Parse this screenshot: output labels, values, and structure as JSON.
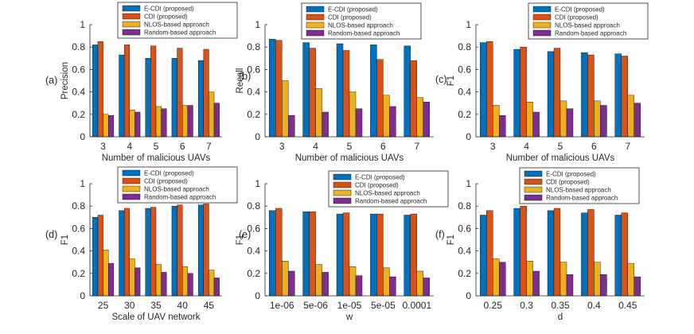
{
  "legend": {
    "entries": [
      "E-CDI (proposed)",
      "CDI (proposed)",
      "NLOS-based approach",
      "Random-based approach"
    ],
    "colors": [
      "#0072BD",
      "#D95319",
      "#EDB120",
      "#7E2F8E"
    ]
  },
  "chart_data": [
    {
      "type": "bar",
      "panel_label": "(a)",
      "categories": [
        "3",
        "4",
        "5",
        "6",
        "7"
      ],
      "xlabel": "Number of malicious UAVs",
      "ylabel": "Precision",
      "ylim": [
        0,
        1
      ],
      "yticks": [
        "0",
        "0.2",
        "0.4",
        "0.6",
        "0.8",
        "1"
      ],
      "series": [
        {
          "name": "E-CDI (proposed)",
          "values": [
            0.82,
            0.73,
            0.7,
            0.7,
            0.68
          ]
        },
        {
          "name": "CDI (proposed)",
          "values": [
            0.85,
            0.82,
            0.81,
            0.79,
            0.78
          ]
        },
        {
          "name": "NLOS-based approach",
          "values": [
            0.2,
            0.24,
            0.27,
            0.28,
            0.4
          ]
        },
        {
          "name": "Random-based approach",
          "values": [
            0.19,
            0.22,
            0.25,
            0.28,
            0.3
          ]
        }
      ]
    },
    {
      "type": "bar",
      "panel_label": "(b)",
      "categories": [
        "3",
        "4",
        "5",
        "6",
        "7"
      ],
      "xlabel": "Number of malicious UAVs",
      "ylabel": "Recall",
      "ylim": [
        0,
        1
      ],
      "yticks": [
        "0",
        "0.2",
        "0.4",
        "0.6",
        "0.8",
        "1"
      ],
      "series": [
        {
          "name": "E-CDI (proposed)",
          "values": [
            0.87,
            0.84,
            0.83,
            0.82,
            0.81
          ]
        },
        {
          "name": "CDI (proposed)",
          "values": [
            0.86,
            0.79,
            0.77,
            0.69,
            0.68
          ]
        },
        {
          "name": "NLOS-based approach",
          "values": [
            0.5,
            0.43,
            0.4,
            0.37,
            0.35
          ]
        },
        {
          "name": "Random-based approach",
          "values": [
            0.19,
            0.22,
            0.25,
            0.27,
            0.31
          ]
        }
      ]
    },
    {
      "type": "bar",
      "panel_label": "(c)",
      "categories": [
        "3",
        "4",
        "5",
        "6",
        "7"
      ],
      "xlabel": "Number of malicious UAVs",
      "ylabel": "F1",
      "ylim": [
        0,
        1
      ],
      "yticks": [
        "0",
        "0.2",
        "0.4",
        "0.6",
        "0.8",
        "1"
      ],
      "series": [
        {
          "name": "E-CDI (proposed)",
          "values": [
            0.84,
            0.78,
            0.76,
            0.75,
            0.74
          ]
        },
        {
          "name": "CDI (proposed)",
          "values": [
            0.85,
            0.8,
            0.79,
            0.73,
            0.72
          ]
        },
        {
          "name": "NLOS-based approach",
          "values": [
            0.28,
            0.31,
            0.32,
            0.32,
            0.37
          ]
        },
        {
          "name": "Random-based approach",
          "values": [
            0.19,
            0.22,
            0.25,
            0.28,
            0.3
          ]
        }
      ]
    },
    {
      "type": "bar",
      "panel_label": "(d)",
      "categories": [
        "25",
        "30",
        "35",
        "40",
        "45"
      ],
      "xlabel": "Scale of UAV network",
      "ylabel": "F1",
      "ylim": [
        0,
        1
      ],
      "yticks": [
        "0",
        "0.2",
        "0.4",
        "0.6",
        "0.8",
        "1"
      ],
      "series": [
        {
          "name": "E-CDI (proposed)",
          "values": [
            0.7,
            0.76,
            0.78,
            0.8,
            0.81
          ]
        },
        {
          "name": "CDI (proposed)",
          "values": [
            0.72,
            0.78,
            0.79,
            0.81,
            0.82
          ]
        },
        {
          "name": "NLOS-based approach",
          "values": [
            0.41,
            0.33,
            0.28,
            0.26,
            0.23
          ]
        },
        {
          "name": "Random-based approach",
          "values": [
            0.29,
            0.25,
            0.21,
            0.2,
            0.16
          ]
        }
      ]
    },
    {
      "type": "bar",
      "panel_label": "(e)",
      "categories": [
        "1e-06",
        "5e-06",
        "1e-05",
        "5e-05",
        "0.0001"
      ],
      "xlabel": "w",
      "ylabel": "F1",
      "ylim": [
        0,
        1
      ],
      "yticks": [
        "0",
        "0.2",
        "0.4",
        "0.6",
        "0.8",
        "1"
      ],
      "series": [
        {
          "name": "E-CDI (proposed)",
          "values": [
            0.76,
            0.75,
            0.73,
            0.73,
            0.72
          ]
        },
        {
          "name": "CDI (proposed)",
          "values": [
            0.78,
            0.75,
            0.74,
            0.73,
            0.73
          ]
        },
        {
          "name": "NLOS-based approach",
          "values": [
            0.31,
            0.28,
            0.26,
            0.25,
            0.22
          ]
        },
        {
          "name": "Random-based approach",
          "values": [
            0.22,
            0.21,
            0.18,
            0.17,
            0.16
          ]
        }
      ]
    },
    {
      "type": "bar",
      "panel_label": "(f)",
      "categories": [
        "0.25",
        "0.3",
        "0.35",
        "0.4",
        "0.45"
      ],
      "xlabel": "d",
      "ylabel": "F1",
      "ylim": [
        0,
        1
      ],
      "yticks": [
        "0",
        "0.2",
        "0.4",
        "0.6",
        "0.8",
        "1"
      ],
      "series": [
        {
          "name": "E-CDI (proposed)",
          "values": [
            0.72,
            0.78,
            0.76,
            0.74,
            0.72
          ]
        },
        {
          "name": "CDI (proposed)",
          "values": [
            0.76,
            0.8,
            0.78,
            0.77,
            0.74
          ]
        },
        {
          "name": "NLOS-based approach",
          "values": [
            0.33,
            0.31,
            0.3,
            0.3,
            0.29
          ]
        },
        {
          "name": "Random-based approach",
          "values": [
            0.3,
            0.22,
            0.19,
            0.19,
            0.17
          ]
        }
      ]
    }
  ]
}
